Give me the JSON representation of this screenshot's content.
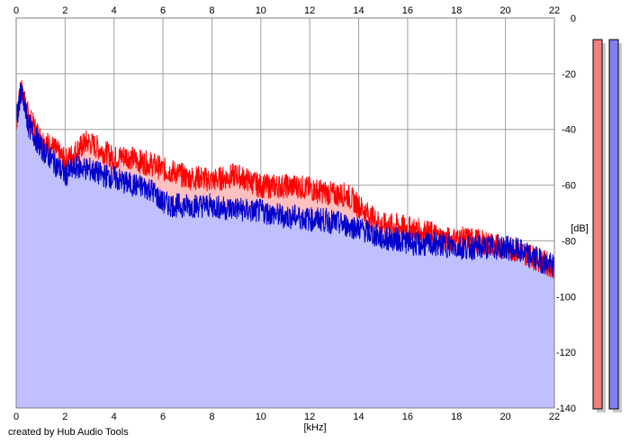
{
  "chart_data": {
    "type": "area",
    "xlabel": "[kHz]",
    "ylabel": "[dB]",
    "xlim": [
      0,
      22
    ],
    "ylim": [
      -140,
      0
    ],
    "x_ticks": [
      "0",
      "2",
      "4",
      "6",
      "8",
      "10",
      "12",
      "14",
      "16",
      "18",
      "20",
      "22"
    ],
    "y_ticks": [
      "0",
      "-20",
      "-40",
      "-60",
      "-80",
      "-100",
      "-120",
      "-140"
    ],
    "colors": {
      "red_line": "#ff0000",
      "red_fill": "#ffc0c0",
      "blue_line": "#0000cc",
      "blue_fill": "#c0c0ff",
      "grid": "#a0a0a0",
      "meter_red": "#f08080",
      "meter_blue": "#8080f0"
    },
    "series": [
      {
        "color": "red",
        "x": [
          0,
          0.2,
          0.5,
          1,
          1.5,
          2,
          2.5,
          2.9,
          3.5,
          4,
          4.5,
          5,
          5.5,
          6,
          6.5,
          7,
          7.5,
          8,
          8.5,
          9,
          9.5,
          10,
          10.5,
          11,
          11.5,
          12,
          12.5,
          13,
          13.5,
          14,
          14.5,
          15,
          15.5,
          16,
          16.5,
          17,
          17.5,
          18,
          18.5,
          19,
          19.5,
          20,
          20.5,
          21,
          21.5,
          22
        ],
        "y": [
          -36,
          -24,
          -34,
          -42,
          -45,
          -50,
          -46,
          -43,
          -46,
          -49,
          -48,
          -50,
          -51,
          -53,
          -54,
          -56,
          -56,
          -57,
          -56,
          -55,
          -57,
          -59,
          -59,
          -59,
          -59,
          -60,
          -61,
          -62,
          -62,
          -66,
          -70,
          -73,
          -73,
          -74,
          -75,
          -76,
          -78,
          -78,
          -78,
          -79,
          -80,
          -81,
          -82,
          -84,
          -86,
          -88
        ]
      },
      {
        "color": "blue",
        "x": [
          0,
          0.2,
          0.5,
          1,
          1.5,
          2,
          2.5,
          3,
          3.5,
          4,
          4.5,
          5,
          5.5,
          6,
          6.5,
          7,
          7.5,
          8,
          8.5,
          9,
          9.5,
          10,
          10.5,
          11,
          11.5,
          12,
          12.5,
          13,
          13.5,
          14,
          14.5,
          15,
          15.5,
          16,
          16.5,
          17,
          17.5,
          18,
          18.5,
          19,
          19.5,
          20,
          20.5,
          21,
          21.5,
          22
        ],
        "y": [
          -35,
          -25,
          -37,
          -45,
          -50,
          -55,
          -52,
          -53,
          -55,
          -56,
          -58,
          -59,
          -60,
          -65,
          -66,
          -66,
          -66,
          -66,
          -67,
          -67,
          -68,
          -68,
          -69,
          -70,
          -70,
          -71,
          -71,
          -72,
          -73,
          -74,
          -76,
          -78,
          -78,
          -79,
          -80,
          -80,
          -80,
          -81,
          -81,
          -81,
          -81,
          -81,
          -82,
          -84,
          -86,
          -88
        ]
      }
    ]
  },
  "credit": "created by Hub Audio Tools"
}
